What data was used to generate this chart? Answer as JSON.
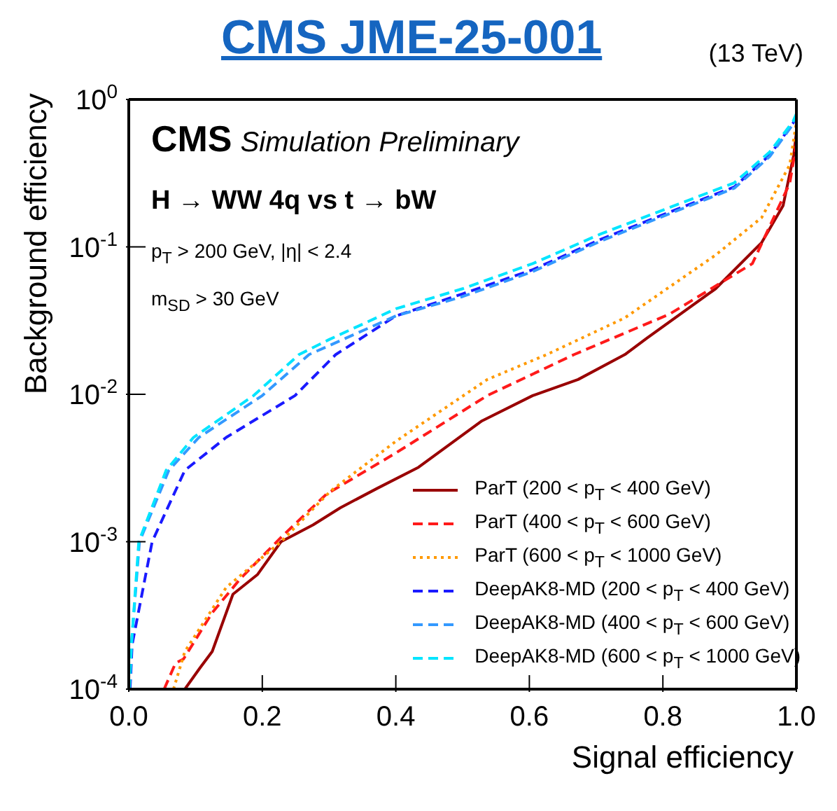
{
  "chart_data": {
    "type": "line",
    "title": "CMS JME-25-001",
    "subtitle": "(13 TeV)",
    "xlabel": "Signal efficiency",
    "ylabel": "Background efficiency",
    "annotations": [
      "CMS",
      "Simulation Preliminary",
      "H → WW 4q vs t → bW",
      "p$_{T}$ > 200 GeV,  |η| < 2.4",
      "m$_{SD}$ > 30 GeV"
    ],
    "log": "y",
    "legend": "bottom right",
    "marker": "none",
    "xlim": [
      0,
      1
    ],
    "xticks": [
      {
        "value": 0,
        "label": "0.0"
      },
      {
        "value": 0.2,
        "label": "0.2"
      },
      {
        "value": 0.4,
        "label": "0.4"
      },
      {
        "value": 0.6,
        "label": "0.6"
      },
      {
        "value": 0.8,
        "label": "0.8"
      },
      {
        "value": 1,
        "label": "1.0"
      }
    ],
    "ylim": [
      0.0001,
      1
    ],
    "yticks": [
      {
        "value": 0.0001,
        "label": "10$^{-4}$"
      },
      {
        "value": 0.001,
        "label": "10$^{-3}$"
      },
      {
        "value": 0.01,
        "label": "10$^{-2}$"
      },
      {
        "value": 0.1,
        "label": "10$^{-1}$"
      },
      {
        "value": 1,
        "label": "10$^{0}$"
      }
    ],
    "series": [
      {
        "name": "ParT (200 < p$_{T}$ < 400 GeV)",
        "color": "#990000",
        "line_style": "solid",
        "x": [
          0.084,
          0.107,
          0.125,
          0.156,
          0.193,
          0.228,
          0.276,
          0.317,
          0.372,
          0.434,
          0.529,
          0.605,
          0.673,
          0.743,
          0.776,
          0.879,
          0.948,
          0.98,
          0.996,
          1.0
        ],
        "values": [
          0.0001,
          0.00014,
          0.00018,
          0.00044,
          0.0006,
          0.001,
          0.0013,
          0.0017,
          0.0023,
          0.0032,
          0.0066,
          0.0098,
          0.0126,
          0.0186,
          0.024,
          0.052,
          0.107,
          0.19,
          0.42,
          0.6
        ]
      },
      {
        "name": "ParT (400 < p$_{T}$ < 600 GeV)",
        "color": "#ff1a1a",
        "line_style": "dashed",
        "x": [
          0.053,
          0.07,
          0.082,
          0.125,
          0.167,
          0.228,
          0.296,
          0.4,
          0.537,
          0.667,
          0.81,
          0.934,
          0.99,
          1.0
        ],
        "values": [
          0.0001,
          0.00015,
          0.00016,
          0.00033,
          0.00056,
          0.00107,
          0.0021,
          0.004,
          0.0098,
          0.0186,
          0.035,
          0.077,
          0.27,
          0.5
        ]
      },
      {
        "name": "ParT (600 < p$_{T}$ < 1000 GeV)",
        "color": "#ff9900",
        "line_style": "dotted",
        "x": [
          0.067,
          0.084,
          0.146,
          0.228,
          0.302,
          0.4,
          0.537,
          0.626,
          0.743,
          0.879,
          0.948,
          0.99,
          1.0
        ],
        "values": [
          0.0001,
          0.00018,
          0.00049,
          0.001,
          0.0022,
          0.0048,
          0.0126,
          0.0186,
          0.033,
          0.088,
          0.158,
          0.36,
          0.7
        ]
      },
      {
        "name": "DeepAK8-MD (200 < p$_{T}$ < 400 GeV)",
        "color": "#1a1aff",
        "line_style": "dashed",
        "x": [
          0.002,
          0.005,
          0.035,
          0.084,
          0.146,
          0.249,
          0.31,
          0.4,
          0.5,
          0.605,
          0.708,
          0.81,
          0.907,
          0.96,
          0.995,
          1.0
        ],
        "values": [
          0.0001,
          0.0002,
          0.001,
          0.00305,
          0.0051,
          0.0098,
          0.0186,
          0.034,
          0.048,
          0.07,
          0.113,
          0.172,
          0.255,
          0.42,
          0.69,
          0.78
        ]
      },
      {
        "name": "DeepAK8-MD (400 < p$_{T}$ < 600 GeV)",
        "color": "#3399ff",
        "line_style": "dashed",
        "x": [
          0.001,
          0.004,
          0.016,
          0.06,
          0.105,
          0.2,
          0.27,
          0.4,
          0.5,
          0.605,
          0.708,
          0.81,
          0.907,
          0.96,
          0.995,
          1.0
        ],
        "values": [
          0.0001,
          0.0002,
          0.001,
          0.00305,
          0.0051,
          0.0098,
          0.0186,
          0.034,
          0.046,
          0.068,
          0.11,
          0.168,
          0.25,
          0.41,
          0.68,
          0.78
        ]
      },
      {
        "name": "DeepAK8-MD (600 < p$_{T}$ < 1000 GeV)",
        "color": "#00e5ff",
        "line_style": "dashed",
        "x": [
          0.001,
          0.004,
          0.015,
          0.056,
          0.097,
          0.187,
          0.255,
          0.3,
          0.4,
          0.5,
          0.605,
          0.708,
          0.81,
          0.907,
          0.96,
          0.995,
          1.0
        ],
        "values": [
          0.0001,
          0.0002,
          0.001,
          0.00305,
          0.0051,
          0.0098,
          0.0186,
          0.0235,
          0.038,
          0.052,
          0.077,
          0.123,
          0.185,
          0.272,
          0.44,
          0.71,
          0.8
        ]
      }
    ]
  }
}
